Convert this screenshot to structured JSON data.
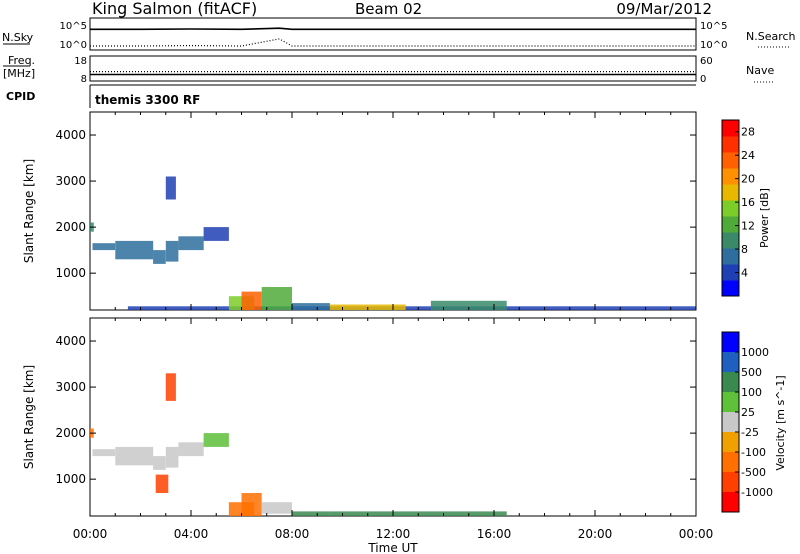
{
  "header": {
    "station": "King Salmon (fitACF)",
    "beam": "Beam 02",
    "date": "09/Mar/2012"
  },
  "noise_panel": {
    "left_label": "N.Sky",
    "left_ticks": [
      "10^5",
      "10^0"
    ],
    "right_label": "N.Search",
    "right_ticks": [
      "10^5",
      "10^0"
    ]
  },
  "freq_panel": {
    "left_label_1": "Freq.",
    "left_label_2": "[MHz]",
    "left_ticks": [
      "18",
      "8"
    ],
    "right_label": "Nave",
    "right_ticks": [
      "60",
      "0"
    ]
  },
  "cpid": {
    "label": "CPID",
    "program": "themis 3300 RF"
  },
  "x_axis": {
    "label": "Time UT",
    "ticks": [
      "00:00",
      "04:00",
      "08:00",
      "12:00",
      "16:00",
      "20:00",
      "00:00"
    ]
  },
  "colors": {
    "power_scale": [
      "#0000ff",
      "#1e40b4",
      "#2e6e9e",
      "#3a8a6a",
      "#4faa3a",
      "#7ccd2a",
      "#e8b800",
      "#ff9000",
      "#ff6000",
      "#ff3000",
      "#ff0000"
    ],
    "velocity_scale": [
      "#0000ff",
      "#1f5fbf",
      "#3a8a50",
      "#5fc03a",
      "#c8c8c8",
      "#f0a000",
      "#ff7000",
      "#ff4000",
      "#ff0000"
    ]
  },
  "chart_data": [
    {
      "type": "line",
      "panel": "noise",
      "ylabel_left": "N.Sky",
      "ylabel_right": "N.Search",
      "yscale": "log",
      "ylim": [
        1,
        100000
      ],
      "x_hours": [
        0,
        2,
        4,
        6,
        7.5,
        8,
        10,
        12,
        14,
        16,
        18,
        20,
        22,
        24
      ],
      "series": [
        {
          "name": "N.Sky",
          "style": "solid",
          "values": [
            3000,
            3000,
            3500,
            3000,
            5000,
            3000,
            3000,
            3000,
            3000,
            3000,
            3000,
            3000,
            3000,
            3000
          ]
        },
        {
          "name": "N.Search",
          "style": "dotted",
          "values": [
            1,
            1,
            1.2,
            1,
            30,
            1,
            1,
            1,
            1,
            1,
            1,
            1,
            1,
            1
          ]
        }
      ]
    },
    {
      "type": "line",
      "panel": "frequency",
      "ylabel_left": "Freq. [MHz]",
      "ylabel_right": "Nave",
      "ylim_left": [
        8,
        18
      ],
      "ylim_right": [
        0,
        60
      ],
      "x_hours": [
        0,
        4,
        8,
        12,
        16,
        20,
        24
      ],
      "series": [
        {
          "name": "Freq.",
          "style": "solid",
          "values": [
            10.5,
            10.5,
            10.5,
            10.5,
            10.5,
            10.5,
            10.5
          ]
        },
        {
          "name": "Nave",
          "style": "dotted",
          "values": [
            23,
            23,
            23,
            23,
            23,
            23,
            23
          ]
        }
      ]
    },
    {
      "type": "heatmap",
      "panel": "power",
      "ylabel": "Slant Range [km]",
      "xlabel": "Time UT",
      "colorbar_label": "Power [dB]",
      "colorbar_ticks": [
        4,
        8,
        12,
        16,
        20,
        24,
        28
      ],
      "clim": [
        0,
        30
      ],
      "ylim": [
        200,
        4500
      ],
      "yticks": [
        1000,
        2000,
        3000,
        4000
      ],
      "xlim_hours": [
        0,
        24
      ],
      "regions": [
        {
          "t0": 0.0,
          "t1": 0.15,
          "r0": 1900,
          "r1": 2100,
          "value": 10
        },
        {
          "t0": 0.1,
          "t1": 1.0,
          "r0": 1500,
          "r1": 1650,
          "value": 6
        },
        {
          "t0": 1.0,
          "t1": 2.5,
          "r0": 1300,
          "r1": 1700,
          "value": 8
        },
        {
          "t0": 2.5,
          "t1": 3.0,
          "r0": 1200,
          "r1": 1500,
          "value": 8
        },
        {
          "t0": 3.0,
          "t1": 3.5,
          "r0": 1250,
          "r1": 1700,
          "value": 7
        },
        {
          "t0": 3.5,
          "t1": 4.5,
          "r0": 1500,
          "r1": 1800,
          "value": 6
        },
        {
          "t0": 4.5,
          "t1": 5.5,
          "r0": 1700,
          "r1": 2000,
          "value": 5
        },
        {
          "t0": 3.0,
          "t1": 3.4,
          "r0": 2600,
          "r1": 3100,
          "value": 5
        },
        {
          "t0": 1.5,
          "t1": 24.0,
          "r0": 200,
          "r1": 280,
          "value": 4
        },
        {
          "t0": 5.5,
          "t1": 6.5,
          "r0": 200,
          "r1": 500,
          "value": 14
        },
        {
          "t0": 6.0,
          "t1": 6.8,
          "r0": 200,
          "r1": 600,
          "value": 22
        },
        {
          "t0": 6.8,
          "t1": 8.0,
          "r0": 200,
          "r1": 700,
          "value": 12
        },
        {
          "t0": 8.0,
          "t1": 9.5,
          "r0": 200,
          "r1": 350,
          "value": 8
        },
        {
          "t0": 9.5,
          "t1": 12.5,
          "r0": 200,
          "r1": 320,
          "value": 18
        },
        {
          "t0": 13.5,
          "t1": 16.5,
          "r0": 200,
          "r1": 400,
          "value": 10
        }
      ]
    },
    {
      "type": "heatmap",
      "panel": "velocity",
      "ylabel": "Slant Range [km]",
      "xlabel": "Time UT",
      "colorbar_label": "Velocity [m s^-1]",
      "colorbar_ticks": [
        1000,
        500,
        100,
        25,
        -25,
        -100,
        -500,
        -1000
      ],
      "ylim": [
        200,
        4500
      ],
      "yticks": [
        1000,
        2000,
        3000,
        4000
      ],
      "xlim_hours": [
        0,
        24
      ],
      "regions": [
        {
          "t0": 0.0,
          "t1": 0.15,
          "r0": 1900,
          "r1": 2100,
          "value": -150
        },
        {
          "t0": 0.1,
          "t1": 1.0,
          "r0": 1500,
          "r1": 1650,
          "value": 0
        },
        {
          "t0": 1.0,
          "t1": 2.5,
          "r0": 1300,
          "r1": 1700,
          "value": 0
        },
        {
          "t0": 2.5,
          "t1": 3.0,
          "r0": 1200,
          "r1": 1500,
          "value": 0
        },
        {
          "t0": 3.0,
          "t1": 3.5,
          "r0": 1250,
          "r1": 1700,
          "value": 0
        },
        {
          "t0": 3.5,
          "t1": 4.5,
          "r0": 1500,
          "r1": 1800,
          "value": 0
        },
        {
          "t0": 4.5,
          "t1": 5.5,
          "r0": 1700,
          "r1": 2000,
          "value": 50
        },
        {
          "t0": 3.0,
          "t1": 3.4,
          "r0": 2700,
          "r1": 3300,
          "value": -700
        },
        {
          "t0": 2.6,
          "t1": 3.1,
          "r0": 700,
          "r1": 1100,
          "value": -700
        },
        {
          "t0": 5.5,
          "t1": 6.5,
          "r0": 200,
          "r1": 500,
          "value": -150
        },
        {
          "t0": 6.0,
          "t1": 6.8,
          "r0": 200,
          "r1": 700,
          "value": -300
        },
        {
          "t0": 6.8,
          "t1": 8.0,
          "r0": 250,
          "r1": 500,
          "value": 0
        },
        {
          "t0": 8.0,
          "t1": 9.5,
          "r0": 200,
          "r1": 300,
          "value": 100
        },
        {
          "t0": 9.5,
          "t1": 16.5,
          "r0": 200,
          "r1": 300,
          "value": 150
        }
      ]
    }
  ]
}
